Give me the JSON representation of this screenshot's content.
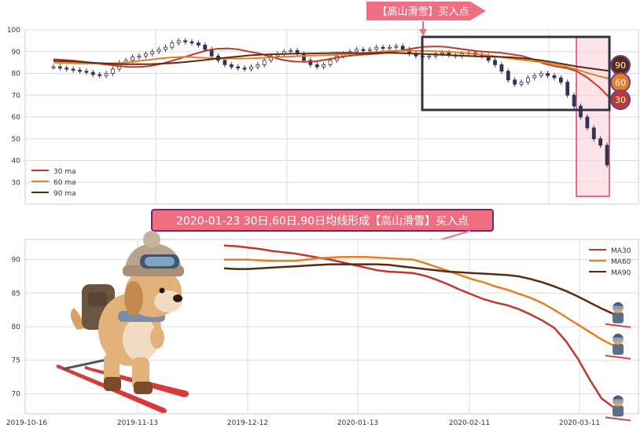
{
  "top_chart": {
    "annotation": "【高山滑雪】买入点",
    "ylim": [
      20,
      100
    ],
    "y_ticks": [
      30,
      40,
      50,
      60,
      70,
      80,
      90,
      100
    ],
    "legend": [
      {
        "label": "30 ma",
        "color": "#c0392b"
      },
      {
        "label": "60 ma",
        "color": "#e67e22"
      },
      {
        "label": "90 ma",
        "color": "#5d2a10"
      }
    ],
    "badges": [
      {
        "label": "90",
        "color": "#5d2a10"
      },
      {
        "label": "60",
        "color": "#e67e22"
      },
      {
        "label": "30",
        "color": "#c0392b"
      }
    ]
  },
  "bottom_chart": {
    "annotation": "2020-01-23 30日,60日,90日均线形成【高山滑雪】买入点",
    "ylim": [
      67,
      93
    ],
    "y_ticks": [
      70,
      75,
      80,
      85,
      90
    ],
    "x_ticks": [
      "2019-10-16",
      "2019-11-13",
      "2019-12-12",
      "2020-01-13",
      "2020-02-11",
      "2020-03-11"
    ],
    "legend": [
      {
        "label": "MA30",
        "color": "#c0392b"
      },
      {
        "label": "MA60",
        "color": "#e67e22"
      },
      {
        "label": "MA90",
        "color": "#5d2a10"
      }
    ]
  },
  "chart_data": [
    {
      "type": "candlestick",
      "description_of_axes": "price",
      "ylim": [
        20,
        100
      ],
      "price_close": [
        83,
        82.5,
        82,
        81.5,
        81,
        80.5,
        79.5,
        79,
        80,
        82,
        85,
        86,
        87.5,
        88,
        89,
        90,
        91,
        92,
        94,
        95,
        94.5,
        94,
        93,
        91,
        88,
        86,
        84,
        83,
        82.5,
        82,
        83,
        84,
        86,
        88,
        89,
        90,
        90.5,
        89,
        86,
        84,
        83,
        84,
        86,
        88,
        89,
        90,
        91,
        90.5,
        91,
        92,
        91.5,
        92,
        92.5,
        91,
        89,
        88,
        87.5,
        88,
        89,
        89.5,
        88.5,
        88,
        89,
        89.5,
        88.5,
        88,
        86,
        84,
        81,
        77,
        75,
        76,
        78,
        79,
        80,
        79,
        78,
        76,
        70,
        65,
        60,
        55,
        50,
        47,
        38
      ],
      "series": [
        {
          "name": "30 ma",
          "values": [
            86.5,
            86.2,
            85.8,
            85.2,
            84.5,
            84,
            83.4,
            83,
            83,
            83.5,
            84.5,
            86,
            87.5,
            89,
            90.5,
            91.3,
            91.5,
            91,
            90,
            89,
            87.5,
            86.2,
            85.5,
            85.3,
            85.5,
            86.3,
            87.2,
            88,
            88.5,
            88.8,
            89.2,
            89.8,
            90.5,
            91.5,
            92.2,
            92.4,
            92.2,
            91.5,
            90.8,
            90.2,
            89.8,
            89.5,
            88.8,
            88,
            86.5,
            84.5,
            83.3,
            82.5,
            81,
            78,
            74,
            69
          ]
        },
        {
          "name": "60 ma",
          "values": [
            85,
            84.8,
            84.6,
            84.5,
            84.5,
            84.6,
            84.8,
            85.2,
            85.8,
            86.4,
            87,
            87.4,
            87.6,
            87.4,
            87.1,
            86.9,
            86.8,
            86.8,
            86.9,
            87.1,
            87.4,
            87.6,
            87.8,
            88,
            88.2,
            88.4,
            88.6,
            88.9,
            89.2,
            89.6,
            90,
            90.3,
            90.4,
            90.4,
            90.3,
            90.2,
            90,
            89.7,
            89.3,
            88.8,
            88.2,
            87.5,
            86.8,
            86.2,
            85.6,
            85,
            84.2,
            83.2,
            81.8,
            80.2,
            78.8,
            77.5
          ]
        },
        {
          "name": "90 ma",
          "values": [
            85.8,
            85.6,
            85.4,
            85.1,
            84.8,
            84.5,
            84.3,
            84.2,
            84.2,
            84.3,
            84.5,
            84.8,
            85.2,
            85.7,
            86.2,
            86.8,
            87.3,
            87.8,
            88.3,
            88.6,
            88.8,
            88.9,
            89,
            89.1,
            89.2,
            89.3,
            89.4,
            89.4,
            89.3,
            89.3,
            89.4,
            89.4,
            89.3,
            89.1,
            88.9,
            88.7,
            88.5,
            88.2,
            88,
            87.8,
            87.7,
            87.6,
            87.4,
            87,
            86.5,
            85.8,
            85,
            84.1,
            83.2,
            82.5,
            81.8,
            81.2
          ]
        }
      ]
    },
    {
      "type": "line",
      "x_start": "2019-12-12",
      "x_end": "2020-03-19",
      "ylim": [
        67,
        93
      ],
      "series": [
        {
          "name": "MA30",
          "values": [
            92.1,
            92,
            91.8,
            91.6,
            91.3,
            91.1,
            90.9,
            90.6,
            90.3,
            90,
            89.6,
            89.2,
            88.8,
            88.4,
            88.2,
            88.1,
            88,
            87.6,
            87,
            86.3,
            85.5,
            84.8,
            84.1,
            83.6,
            83.2,
            82.6,
            81.8,
            80.9,
            79.8,
            77.8,
            75.2,
            72.1,
            69.3,
            68
          ]
        },
        {
          "name": "MA60",
          "values": [
            90,
            90,
            90,
            89.9,
            89.8,
            89.8,
            89.8,
            90,
            90.2,
            90.3,
            90.4,
            90.4,
            90.4,
            90.3,
            90.2,
            90.1,
            90,
            89.5,
            88.9,
            88.3,
            87.7,
            87.1,
            86.6,
            86,
            85.5,
            84.9,
            84.3,
            83.5,
            82.5,
            81.4,
            80.3,
            79.2,
            78.1,
            77.2
          ]
        },
        {
          "name": "MA90",
          "values": [
            88.7,
            88.6,
            88.6,
            88.7,
            88.8,
            88.9,
            89,
            89.1,
            89.2,
            89.3,
            89.3,
            89.3,
            89.3,
            89.3,
            89.2,
            89,
            88.8,
            88.6,
            88.4,
            88.2,
            88.1,
            88,
            87.9,
            87.8,
            87.7,
            87.5,
            87.1,
            86.6,
            86,
            85.3,
            84.5,
            83.6,
            82.7,
            81.9
          ]
        }
      ]
    }
  ]
}
